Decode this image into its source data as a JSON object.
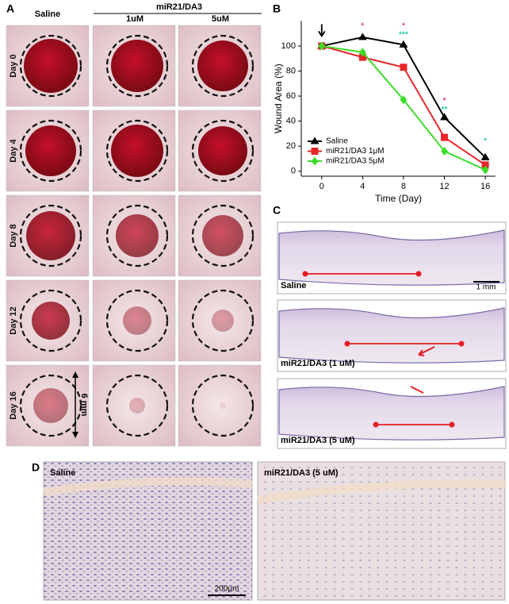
{
  "panel_labels": [
    "A",
    "B",
    "C",
    "D"
  ],
  "panel_a": {
    "group_header": "miR21/DA3",
    "columns": [
      "Saline",
      "1uM",
      "5uM"
    ],
    "rows": [
      "Day 0",
      "Day 4",
      "Day 8",
      "Day 12",
      "Day 16"
    ],
    "scale_label": "6 mm"
  },
  "chart_data": {
    "type": "line",
    "x_label": "Time (Day)",
    "y_label": "Wound Area (%)",
    "x": [
      0,
      4,
      8,
      12,
      16
    ],
    "series": [
      {
        "name": "Saline",
        "color": "#000000",
        "marker": "triangle",
        "values": [
          100,
          107,
          101,
          43,
          11
        ]
      },
      {
        "name": "miR21/DA3 1μM",
        "color": "#e8262a",
        "marker": "square",
        "values": [
          100,
          91,
          83,
          27,
          5
        ]
      },
      {
        "name": "miR21/DA3 5μM",
        "color": "#3ddc2a",
        "marker": "diamond",
        "values": [
          100,
          95,
          57,
          16,
          1
        ]
      }
    ],
    "annotations": [
      {
        "text": "*",
        "color": "#e0457b"
      },
      {
        "text": "*",
        "color": "#e0457b"
      },
      {
        "text": "***",
        "color": "#2fc9a8"
      },
      {
        "text": "*",
        "color": "#e0457b"
      },
      {
        "text": "**",
        "color": "#2fc9a8"
      },
      {
        "text": "*",
        "color": "#2fc9a8"
      }
    ],
    "xlim": [
      -2,
      17
    ],
    "xticks": [
      0,
      4,
      8,
      12,
      16
    ],
    "ylim": [
      -4,
      120
    ],
    "yticks": [
      0,
      20,
      40,
      60,
      80,
      100
    ],
    "legend": "lower-left"
  },
  "panel_c": {
    "labels": [
      "Saline",
      "miR21/DA3 (1 uM)",
      "miR21/DA3 (5 uM)"
    ],
    "scale_label": "1 mm"
  },
  "panel_d": {
    "labels": [
      "Saline",
      "miR21/DA3 (5 uM)"
    ],
    "scale_label": "200μm"
  }
}
